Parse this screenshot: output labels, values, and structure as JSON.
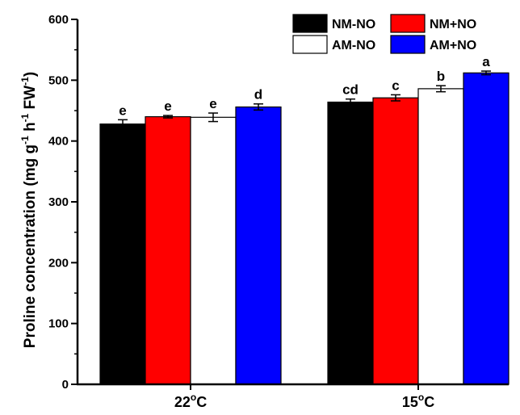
{
  "chart_data": {
    "type": "bar",
    "categories": [
      "22",
      "15"
    ],
    "category_unit_sup": "o",
    "category_unit": "C",
    "ylabel": {
      "main": "Proline concentration (mg g",
      "sup1": "-1",
      "mid1": " h",
      "sup2": "-1",
      "mid2": " FW",
      "sup3": "-1",
      "end": ")"
    },
    "ylim": [
      0,
      600
    ],
    "yticks": [
      "0",
      "100",
      "200",
      "300",
      "400",
      "500",
      "600"
    ],
    "series": [
      {
        "name": "NM-NO",
        "color": "#000000",
        "values": [
          428,
          464
        ],
        "errors": [
          7,
          5
        ],
        "letters": [
          "e",
          "cd"
        ]
      },
      {
        "name": "NM+NO",
        "color": "#ff0000",
        "values": [
          440,
          471
        ],
        "errors": [
          2,
          5
        ],
        "letters": [
          "e",
          "c"
        ]
      },
      {
        "name": "AM-NO",
        "color": "#ffffff",
        "values": [
          439,
          486
        ],
        "errors": [
          7,
          5
        ],
        "letters": [
          "e",
          "b"
        ]
      },
      {
        "name": "AM+NO",
        "color": "#0000ff",
        "values": [
          456,
          512
        ],
        "errors": [
          5,
          3
        ],
        "letters": [
          "d",
          "a"
        ]
      }
    ],
    "legend": {
      "position": "top-right",
      "columns": 2
    }
  }
}
